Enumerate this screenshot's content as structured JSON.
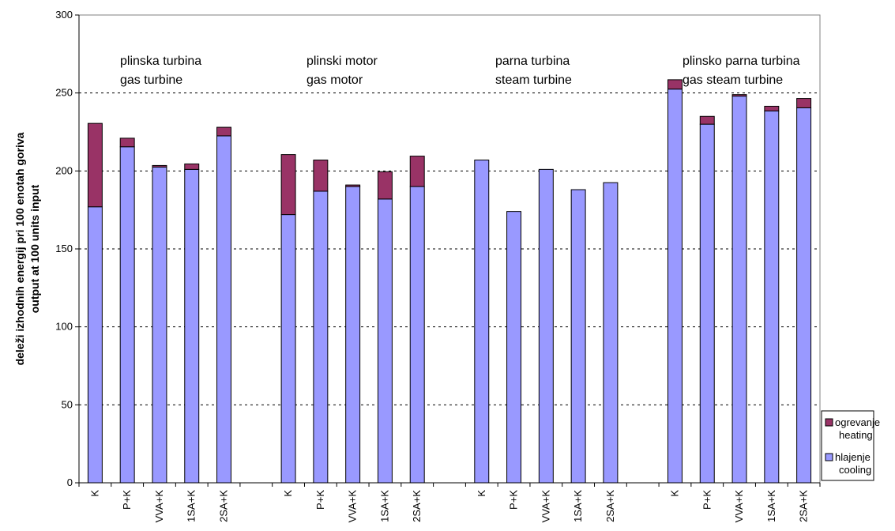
{
  "chart_data": {
    "type": "bar",
    "stacked": true,
    "ylabel_lines": [
      "deleži izhodnih energij pri 100 enotah goriva",
      "output at 100 units input"
    ],
    "ylim": [
      0,
      300
    ],
    "yticks": [
      "0",
      "50",
      "100",
      "150",
      "200",
      "250",
      "300"
    ],
    "ytick_values": [
      0,
      50,
      100,
      150,
      200,
      250,
      300
    ],
    "gridlines": true,
    "legend_position": "bottom-right",
    "colors": {
      "cooling": "#9999ff",
      "heating": "#993366"
    },
    "groups": [
      {
        "label_lines": [
          "plinska turbina",
          "gas turbine"
        ],
        "categories": [
          "K",
          "P+K",
          "VVA+K",
          "1SA+K",
          "2SA+K"
        ],
        "cooling": [
          177,
          215.5,
          202.5,
          201,
          222.5
        ],
        "heating": [
          53.5,
          5.5,
          1,
          3.5,
          5.5
        ]
      },
      {
        "label_lines": [
          "plinski motor",
          "gas motor"
        ],
        "categories": [
          "K",
          "P+K",
          "VVA+K",
          "1SA+K",
          "2SA+K"
        ],
        "cooling": [
          172,
          187,
          190,
          182,
          190
        ],
        "heating": [
          38.5,
          20,
          1,
          17.5,
          19.5
        ]
      },
      {
        "label_lines": [
          "parna turbina",
          "steam turbine"
        ],
        "categories": [
          "K",
          "P+K",
          "VVA+K",
          "1SA+K",
          "2SA+K"
        ],
        "cooling": [
          207,
          174,
          201,
          188,
          192.5
        ],
        "heating": [
          0,
          0,
          0,
          0,
          0
        ]
      },
      {
        "label_lines": [
          "plinsko parna turbina",
          "gas steam turbine"
        ],
        "categories": [
          "K",
          "P+K",
          "VVA+K",
          "1SA+K",
          "2SA+K"
        ],
        "cooling": [
          252.5,
          230,
          248,
          238.5,
          240.5
        ],
        "heating": [
          6,
          5,
          1,
          3,
          6
        ]
      }
    ],
    "legend": [
      {
        "key": "heating",
        "lines": [
          "ogrevanje",
          "heating"
        ]
      },
      {
        "key": "cooling",
        "lines": [
          "hlajenje",
          "cooling"
        ]
      }
    ]
  }
}
